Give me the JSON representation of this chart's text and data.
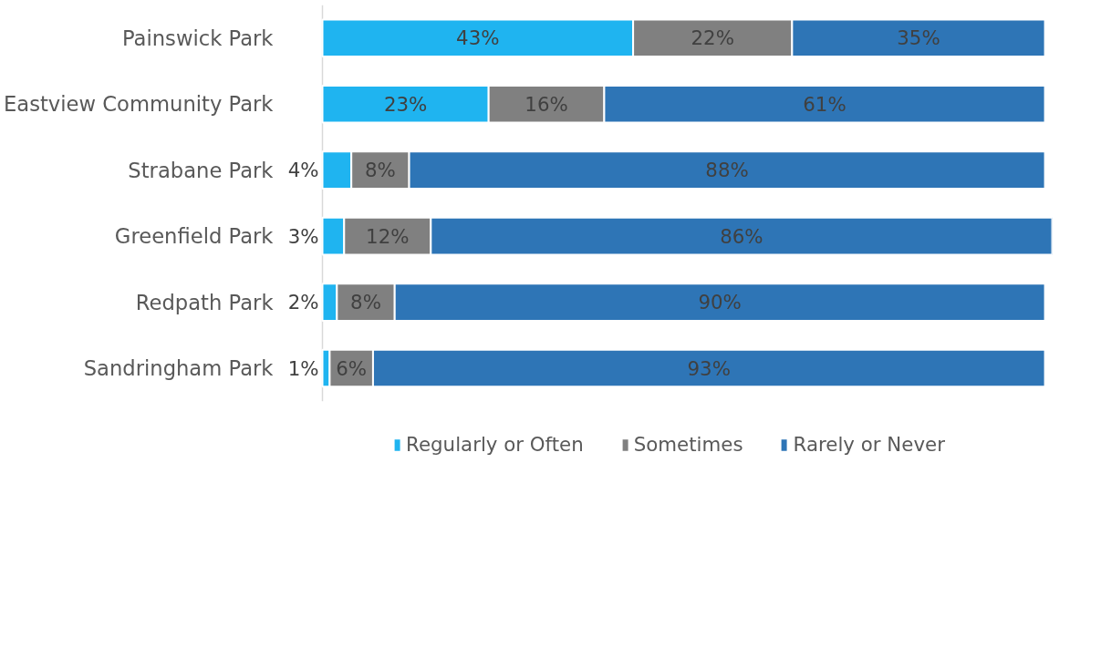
{
  "chart_data": {
    "type": "bar",
    "orientation": "horizontal",
    "stacked": true,
    "legend": "bottom",
    "grid": false,
    "categories": [
      "Painswick Park",
      "Eastview Community Park",
      "Strabane Park",
      "Greenfield Park",
      "Redpath Park",
      "Sandringham Park"
    ],
    "series": [
      {
        "name": "Regularly or Often",
        "color": "#1fb4f0",
        "values": [
          43,
          23,
          4,
          3,
          2,
          1
        ],
        "value_labels": [
          "43%",
          "23%",
          "4%",
          "3%",
          "2%",
          "1%"
        ]
      },
      {
        "name": "Sometimes",
        "color": "#808080",
        "values": [
          22,
          16,
          8,
          12,
          8,
          6
        ],
        "value_labels": [
          "22%",
          "16%",
          "8%",
          "12%",
          "8%",
          "6%"
        ]
      },
      {
        "name": "Rarely or Never",
        "color": "#2e75b6",
        "values": [
          35,
          61,
          88,
          86,
          90,
          93
        ],
        "value_labels": [
          "35%",
          "61%",
          "88%",
          "86%",
          "90%",
          "93%"
        ]
      }
    ]
  }
}
